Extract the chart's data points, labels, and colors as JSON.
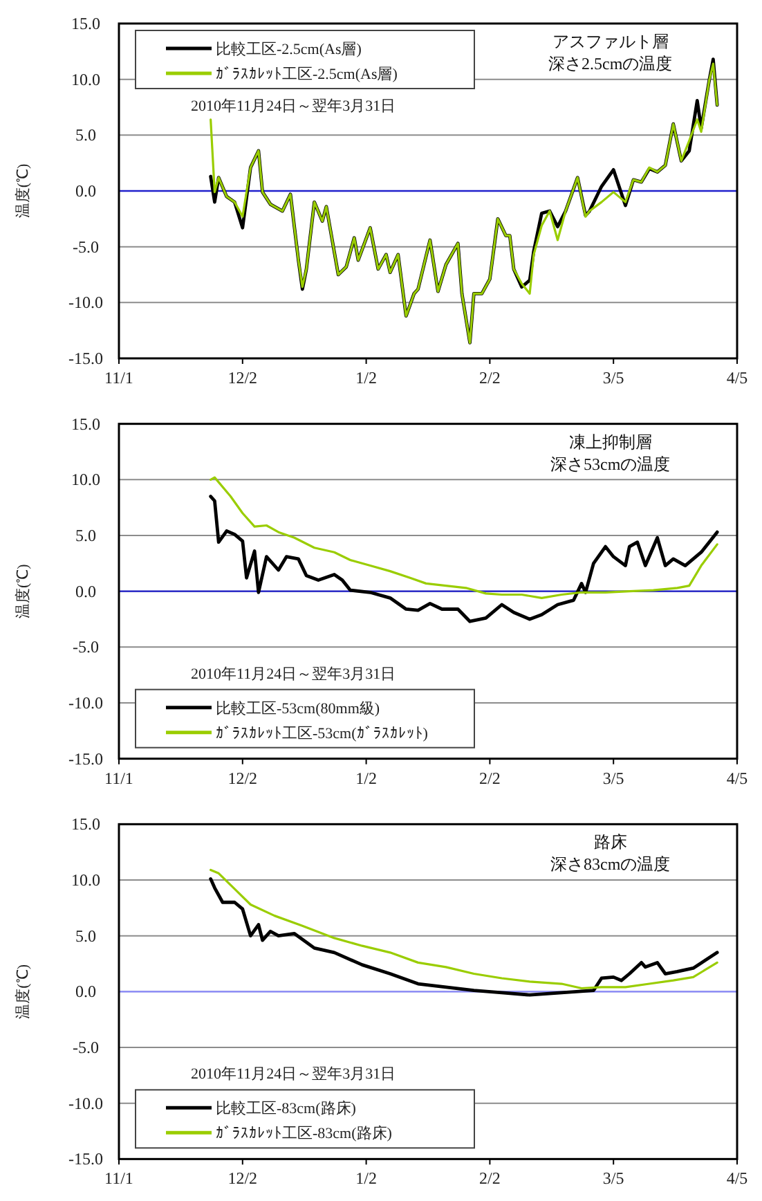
{
  "chart_data": [
    {
      "type": "line",
      "title": "アスファルト層",
      "subtitle": "深さ2.5cmの温度",
      "ylabel": "温度(℃)",
      "annotations": [
        "2010年11月24日～翌年3月31日"
      ],
      "xlim": [
        "2010-11-01",
        "2011-04-05"
      ],
      "xticks": [
        {
          "value": "2010-11-01",
          "label": "11/1"
        },
        {
          "value": "2010-12-02",
          "label": "12/2"
        },
        {
          "value": "2011-01-02",
          "label": "1/2"
        },
        {
          "value": "2011-02-02",
          "label": "2/2"
        },
        {
          "value": "2011-03-05",
          "label": "3/5"
        },
        {
          "value": "2011-04-05",
          "label": "4/5"
        }
      ],
      "ylim": [
        -15,
        15
      ],
      "yticks": [
        {
          "value": -15,
          "label": "-15.0"
        },
        {
          "value": -10,
          "label": "-10.0"
        },
        {
          "value": -5,
          "label": "-5.0"
        },
        {
          "value": 0,
          "label": "0.0"
        },
        {
          "value": 5,
          "label": "5.0"
        },
        {
          "value": 10,
          "label": "10.0"
        },
        {
          "value": 15,
          "label": "15.0"
        }
      ],
      "grid": "y",
      "legend": "top left",
      "ref_lines": [
        {
          "axis": "y",
          "value": 0,
          "color": "#2020cc"
        }
      ],
      "series": [
        {
          "name": "比較工区-2.5cm(As層)",
          "color": "#000000",
          "x": [
            "2010-11-24",
            "2010-11-25",
            "2010-11-26",
            "2010-11-28",
            "2010-11-30",
            "2010-12-02",
            "2010-12-04",
            "2010-12-06",
            "2010-12-07",
            "2010-12-09",
            "2010-12-12",
            "2010-12-14",
            "2010-12-16",
            "2010-12-17",
            "2010-12-18",
            "2010-12-20",
            "2010-12-22",
            "2010-12-23",
            "2010-12-26",
            "2010-12-28",
            "2010-12-30",
            "2010-12-31",
            "2011-01-03",
            "2011-01-05",
            "2011-01-07",
            "2011-01-08",
            "2011-01-10",
            "2011-01-12",
            "2011-01-14",
            "2011-01-15",
            "2011-01-18",
            "2011-01-20",
            "2011-01-22",
            "2011-01-25",
            "2011-01-26",
            "2011-01-28",
            "2011-01-29",
            "2011-01-31",
            "2011-02-02",
            "2011-02-04",
            "2011-02-06",
            "2011-02-07",
            "2011-02-08",
            "2011-02-10",
            "2011-02-12",
            "2011-02-13",
            "2011-02-15",
            "2011-02-17",
            "2011-02-19",
            "2011-02-21",
            "2011-02-24",
            "2011-02-26",
            "2011-02-27",
            "2011-03-02",
            "2011-03-05",
            "2011-03-08",
            "2011-03-10",
            "2011-03-12",
            "2011-03-14",
            "2011-03-16",
            "2011-03-18",
            "2011-03-20",
            "2011-03-22",
            "2011-03-24",
            "2011-03-26",
            "2011-03-27",
            "2011-03-29",
            "2011-03-30",
            "2011-03-31"
          ],
          "values": [
            1.3,
            -1.0,
            1.2,
            -0.5,
            -1.0,
            -3.3,
            2.1,
            3.6,
            -0.1,
            -1.2,
            -1.8,
            -0.3,
            -6.2,
            -8.8,
            -7.0,
            -1.0,
            -2.7,
            -1.4,
            -7.5,
            -6.8,
            -4.2,
            -6.2,
            -3.3,
            -7.0,
            -5.7,
            -7.3,
            -5.7,
            -11.2,
            -9.2,
            -8.8,
            -4.4,
            -9.0,
            -6.6,
            -4.7,
            -9.2,
            -13.6,
            -9.2,
            -9.2,
            -7.9,
            -2.5,
            -4.0,
            -4.0,
            -7.0,
            -8.6,
            -8.0,
            -5.4,
            -2.0,
            -1.8,
            -3.2,
            -1.8,
            1.2,
            -2.2,
            -1.8,
            0.4,
            1.9,
            -1.3,
            1.0,
            0.8,
            2.0,
            1.7,
            2.3,
            6.0,
            2.7,
            3.6,
            8.1,
            5.6,
            9.9,
            11.8,
            7.7
          ]
        },
        {
          "name": "ｶﾞﾗｽｶﾚｯﾄ工区-2.5cm(As層)",
          "color": "#9acd00",
          "x": [
            "2010-11-24",
            "2010-11-25",
            "2010-11-26",
            "2010-11-28",
            "2010-11-30",
            "2010-12-02",
            "2010-12-04",
            "2010-12-06",
            "2010-12-07",
            "2010-12-09",
            "2010-12-12",
            "2010-12-14",
            "2010-12-16",
            "2010-12-17",
            "2010-12-18",
            "2010-12-20",
            "2010-12-22",
            "2010-12-23",
            "2010-12-26",
            "2010-12-28",
            "2010-12-30",
            "2010-12-31",
            "2011-01-03",
            "2011-01-05",
            "2011-01-07",
            "2011-01-08",
            "2011-01-10",
            "2011-01-12",
            "2011-01-14",
            "2011-01-15",
            "2011-01-18",
            "2011-01-20",
            "2011-01-22",
            "2011-01-25",
            "2011-01-26",
            "2011-01-28",
            "2011-01-29",
            "2011-01-31",
            "2011-02-02",
            "2011-02-04",
            "2011-02-06",
            "2011-02-07",
            "2011-02-08",
            "2011-02-10",
            "2011-02-12",
            "2011-02-13",
            "2011-02-15",
            "2011-02-17",
            "2011-02-19",
            "2011-02-21",
            "2011-02-24",
            "2011-02-26",
            "2011-02-27",
            "2011-03-02",
            "2011-03-05",
            "2011-03-08",
            "2011-03-10",
            "2011-03-12",
            "2011-03-14",
            "2011-03-16",
            "2011-03-18",
            "2011-03-20",
            "2011-03-22",
            "2011-03-24",
            "2011-03-26",
            "2011-03-27",
            "2011-03-29",
            "2011-03-30",
            "2011-03-31"
          ],
          "values": [
            6.4,
            -0.1,
            1.2,
            -0.5,
            -1.0,
            -2.3,
            2.1,
            3.6,
            -0.1,
            -1.2,
            -1.8,
            -0.3,
            -6.2,
            -8.6,
            -7.0,
            -1.0,
            -2.7,
            -1.4,
            -7.5,
            -6.8,
            -4.2,
            -6.2,
            -3.3,
            -7.0,
            -5.7,
            -7.3,
            -5.7,
            -11.2,
            -9.2,
            -8.8,
            -4.4,
            -9.0,
            -6.6,
            -4.7,
            -9.2,
            -13.6,
            -9.2,
            -9.2,
            -7.9,
            -2.5,
            -4.0,
            -4.0,
            -7.0,
            -8.3,
            -9.2,
            -5.7,
            -3.1,
            -1.8,
            -4.4,
            -1.8,
            1.2,
            -2.3,
            -1.8,
            -1.0,
            -0.1,
            -1.0,
            1.0,
            0.8,
            2.1,
            1.7,
            2.3,
            6.0,
            2.7,
            4.5,
            6.4,
            5.3,
            9.9,
            11.4,
            7.7
          ]
        }
      ]
    },
    {
      "type": "line",
      "title": "凍上抑制層",
      "subtitle": "深さ53cmの温度",
      "ylabel": "温度(℃)",
      "annotations": [
        "2010年11月24日～翌年3月31日"
      ],
      "xlim": [
        "2010-11-01",
        "2011-04-05"
      ],
      "xticks": [
        {
          "value": "2010-11-01",
          "label": "11/1"
        },
        {
          "value": "2010-12-02",
          "label": "12/2"
        },
        {
          "value": "2011-01-02",
          "label": "1/2"
        },
        {
          "value": "2011-02-02",
          "label": "2/2"
        },
        {
          "value": "2011-03-05",
          "label": "3/5"
        },
        {
          "value": "2011-04-05",
          "label": "4/5"
        }
      ],
      "ylim": [
        -15,
        15
      ],
      "yticks": [
        {
          "value": -15,
          "label": "-15.0"
        },
        {
          "value": -10,
          "label": "-10.0"
        },
        {
          "value": -5,
          "label": "-5.0"
        },
        {
          "value": 0,
          "label": "0.0"
        },
        {
          "value": 5,
          "label": "5.0"
        },
        {
          "value": 10,
          "label": "10.0"
        },
        {
          "value": 15,
          "label": "15.0"
        }
      ],
      "grid": "y",
      "legend": "bottom left",
      "ref_lines": [
        {
          "axis": "y",
          "value": 0,
          "color": "#2020cc"
        }
      ],
      "series": [
        {
          "name": "比較工区-53cm(80mm級)",
          "color": "#000000",
          "x": [
            "2010-11-24",
            "2010-11-25",
            "2010-11-26",
            "2010-11-28",
            "2010-11-30",
            "2010-12-02",
            "2010-12-03",
            "2010-12-05",
            "2010-12-06",
            "2010-12-08",
            "2010-12-11",
            "2010-12-13",
            "2010-12-16",
            "2010-12-18",
            "2010-12-21",
            "2010-12-25",
            "2010-12-27",
            "2010-12-29",
            "2011-01-03",
            "2011-01-08",
            "2011-01-12",
            "2011-01-15",
            "2011-01-18",
            "2011-01-21",
            "2011-01-25",
            "2011-01-28",
            "2011-02-01",
            "2011-02-05",
            "2011-02-08",
            "2011-02-12",
            "2011-02-15",
            "2011-02-19",
            "2011-02-23",
            "2011-02-25",
            "2011-02-26",
            "2011-02-28",
            "2011-03-03",
            "2011-03-05",
            "2011-03-08",
            "2011-03-09",
            "2011-03-11",
            "2011-03-13",
            "2011-03-16",
            "2011-03-18",
            "2011-03-20",
            "2011-03-23",
            "2011-03-27",
            "2011-03-31"
          ],
          "values": [
            8.5,
            8.1,
            4.4,
            5.4,
            5.1,
            4.5,
            1.2,
            3.6,
            -0.1,
            3.1,
            1.9,
            3.1,
            2.9,
            1.4,
            1.0,
            1.5,
            1.0,
            0.1,
            -0.1,
            -0.6,
            -1.6,
            -1.7,
            -1.1,
            -1.6,
            -1.6,
            -2.7,
            -2.4,
            -1.2,
            -1.9,
            -2.5,
            -2.1,
            -1.2,
            -0.8,
            0.7,
            -0.1,
            2.5,
            4.0,
            3.1,
            2.3,
            4.0,
            4.4,
            2.3,
            4.8,
            2.3,
            2.9,
            2.3,
            3.5,
            5.3
          ]
        },
        {
          "name": "ｶﾞﾗｽｶﾚｯﾄ工区-53cm(ｶﾞﾗｽｶﾚｯﾄ)",
          "color": "#9acd00",
          "x": [
            "2010-11-24",
            "2010-11-25",
            "2010-11-29",
            "2010-12-02",
            "2010-12-05",
            "2010-12-08",
            "2010-12-11",
            "2010-12-15",
            "2010-12-20",
            "2010-12-25",
            "2010-12-29",
            "2011-01-03",
            "2011-01-08",
            "2011-01-13",
            "2011-01-17",
            "2011-01-22",
            "2011-01-27",
            "2011-02-01",
            "2011-02-05",
            "2011-02-10",
            "2011-02-15",
            "2011-02-20",
            "2011-02-25",
            "2011-03-03",
            "2011-03-09",
            "2011-03-15",
            "2011-03-21",
            "2011-03-24",
            "2011-03-27",
            "2011-03-31"
          ],
          "values": [
            10.0,
            10.2,
            8.5,
            7.0,
            5.8,
            5.9,
            5.3,
            4.8,
            3.9,
            3.5,
            2.8,
            2.3,
            1.8,
            1.2,
            0.7,
            0.5,
            0.3,
            -0.2,
            -0.3,
            -0.3,
            -0.6,
            -0.3,
            -0.1,
            -0.1,
            0.0,
            0.1,
            0.3,
            0.5,
            2.3,
            4.2
          ]
        }
      ]
    },
    {
      "type": "line",
      "title": "路床",
      "subtitle": "深さ83cmの温度",
      "ylabel": "温度(℃)",
      "annotations": [
        "2010年11月24日～翌年3月31日"
      ],
      "xlim": [
        "2010-11-01",
        "2011-04-05"
      ],
      "xticks": [
        {
          "value": "2010-11-01",
          "label": "11/1"
        },
        {
          "value": "2010-12-02",
          "label": "12/2"
        },
        {
          "value": "2011-01-02",
          "label": "1/2"
        },
        {
          "value": "2011-02-02",
          "label": "2/2"
        },
        {
          "value": "2011-03-05",
          "label": "3/5"
        },
        {
          "value": "2011-04-05",
          "label": "4/5"
        }
      ],
      "ylim": [
        -15,
        15
      ],
      "yticks": [
        {
          "value": -15,
          "label": "-15.0"
        },
        {
          "value": -10,
          "label": "-10.0"
        },
        {
          "value": -5,
          "label": "-5.0"
        },
        {
          "value": 0,
          "label": "0.0"
        },
        {
          "value": 5,
          "label": "5.0"
        },
        {
          "value": 10,
          "label": "10.0"
        },
        {
          "value": 15,
          "label": "15.0"
        }
      ],
      "grid": "y",
      "legend": "bottom left",
      "ref_lines": [
        {
          "axis": "y",
          "value": 0,
          "color": "#8c8cff"
        }
      ],
      "series": [
        {
          "name": "比較工区-83cm(路床)",
          "color": "#000000",
          "x": [
            "2010-11-24",
            "2010-11-25",
            "2010-11-27",
            "2010-11-30",
            "2010-12-02",
            "2010-12-04",
            "2010-12-06",
            "2010-12-07",
            "2010-12-09",
            "2010-12-11",
            "2010-12-15",
            "2010-12-20",
            "2010-12-25",
            "2011-01-01",
            "2011-01-08",
            "2011-01-15",
            "2011-01-22",
            "2011-01-29",
            "2011-02-05",
            "2011-02-12",
            "2011-02-20",
            "2011-02-28",
            "2011-03-02",
            "2011-03-05",
            "2011-03-07",
            "2011-03-09",
            "2011-03-12",
            "2011-03-13",
            "2011-03-16",
            "2011-03-18",
            "2011-03-21",
            "2011-03-25",
            "2011-03-31"
          ],
          "values": [
            10.1,
            9.3,
            8.0,
            8.0,
            7.4,
            5.0,
            6.0,
            4.6,
            5.4,
            5.0,
            5.2,
            3.9,
            3.5,
            2.4,
            1.6,
            0.7,
            0.4,
            0.1,
            -0.1,
            -0.3,
            -0.1,
            0.1,
            1.2,
            1.3,
            1.0,
            1.6,
            2.6,
            2.2,
            2.6,
            1.6,
            1.8,
            2.1,
            3.5
          ]
        },
        {
          "name": "ｶﾞﾗｽｶﾚｯﾄ工区-83cm(路床)",
          "color": "#9acd00",
          "x": [
            "2010-11-24",
            "2010-11-26",
            "2010-11-30",
            "2010-12-04",
            "2010-12-10",
            "2010-12-17",
            "2010-12-25",
            "2011-01-01",
            "2011-01-08",
            "2011-01-15",
            "2011-01-22",
            "2011-01-29",
            "2011-02-05",
            "2011-02-12",
            "2011-02-20",
            "2011-02-25",
            "2011-03-02",
            "2011-03-08",
            "2011-03-14",
            "2011-03-20",
            "2011-03-25",
            "2011-03-31"
          ],
          "values": [
            10.9,
            10.6,
            9.2,
            7.8,
            6.8,
            5.9,
            4.8,
            4.1,
            3.5,
            2.6,
            2.2,
            1.6,
            1.2,
            0.9,
            0.7,
            0.3,
            0.4,
            0.4,
            0.7,
            1.0,
            1.3,
            2.6
          ]
        }
      ]
    }
  ]
}
